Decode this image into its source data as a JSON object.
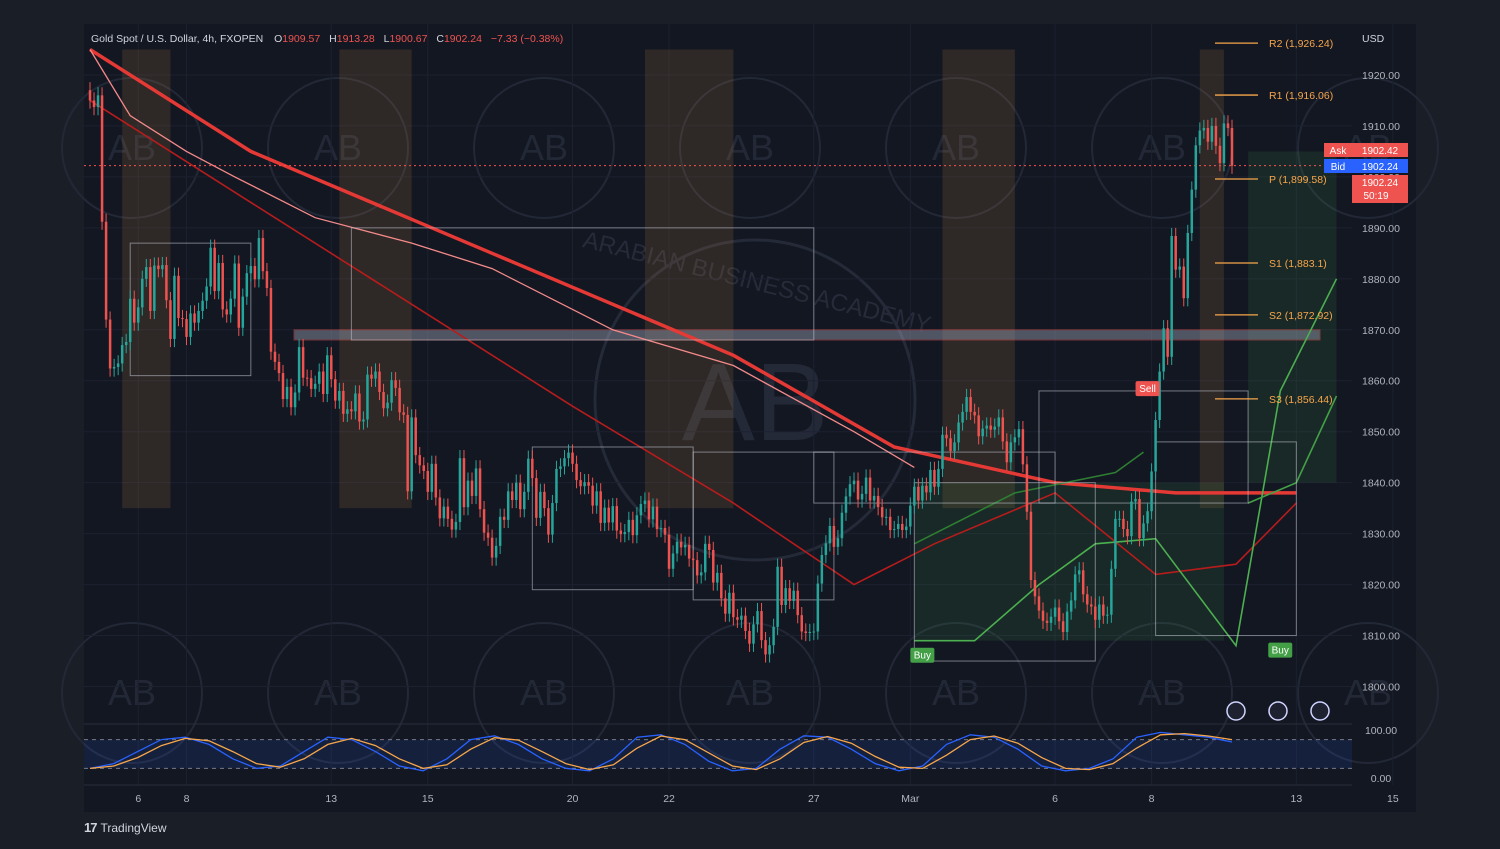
{
  "header": {
    "symbol": "Gold Spot / U.S. Dollar, 4h, FXOPEN",
    "o_label": "O",
    "o_value": "1909.57",
    "h_label": "H",
    "h_value": "1913.28",
    "l_label": "L",
    "l_value": "1900.67",
    "c_label": "C",
    "c_value": "1902.24",
    "change": "−7.33 (−0.38%)"
  },
  "currency": "USD",
  "quote": {
    "ask_label": "Ask",
    "ask_value": "1902.42",
    "bid_label": "Bid",
    "bid_value": "1902.24",
    "last_value": "1902.24",
    "countdown": "50:19"
  },
  "branding": {
    "logo": "17",
    "name": "TradingView"
  },
  "watermark": {
    "text": "ARABIAN BUSINESS ACADEMY",
    "mono": "AB"
  },
  "colors": {
    "background": "#131722",
    "frame": "#1a1e27",
    "up": "#26a69a",
    "down": "#ef5350",
    "pivot": "#f7a64a",
    "ema": "#e53935",
    "supertrend_up": "#4caf50",
    "supertrend_down": "#ef5350"
  },
  "chart_data": {
    "type": "candlestick",
    "price_axis": {
      "min": 1795,
      "max": 1930,
      "ticks": [
        1800,
        1810,
        1820,
        1830,
        1840,
        1850,
        1860,
        1870,
        1880,
        1890,
        1900,
        1910,
        1920
      ],
      "labels": [
        "1800.00",
        "1810.00",
        "1820.00",
        "1830.00",
        "1840.00",
        "1850.00",
        "1860.00",
        "1870.00",
        "1880.00",
        "1890.00",
        "1900.00",
        "1910.00",
        "1920.00"
      ]
    },
    "time_axis": {
      "labels": [
        "6",
        "8",
        "13",
        "15",
        "20",
        "22",
        "27",
        "Mar",
        "6",
        "8",
        "13",
        "15"
      ],
      "index": [
        12,
        24,
        60,
        84,
        120,
        144,
        180,
        204,
        240,
        264,
        300,
        324
      ]
    },
    "closes": [
      1915.0,
      1913.7,
      1916.0,
      1891.2,
      1872.0,
      1862.4,
      1862.7,
      1863.4,
      1867.0,
      1867.6,
      1876.1,
      1871.4,
      1874.4,
      1880.0,
      1882.3,
      1873.7,
      1882.6,
      1881.9,
      1882.7,
      1875.8,
      1868.2,
      1880.6,
      1872.3,
      1872.1,
      1868.6,
      1873.2,
      1871.4,
      1873.7,
      1875.7,
      1878.5,
      1886.1,
      1877.6,
      1883.1,
      1874.0,
      1873.0,
      1876.1,
      1883.0,
      1870.4,
      1876.5,
      1881.1,
      1882.5,
      1879.9,
      1888.0,
      1881.5,
      1878.2,
      1865.7,
      1863.7,
      1861.5,
      1856.4,
      1858.8,
      1854.8,
      1857.7,
      1866.6,
      1860.6,
      1860.5,
      1858.4,
      1859.4,
      1861.8,
      1857.4,
      1865.0,
      1860.3,
      1856.1,
      1858.0,
      1853.5,
      1854.4,
      1854.0,
      1857.5,
      1852.0,
      1852.4,
      1861.2,
      1860.4,
      1861.8,
      1857.8,
      1854.6,
      1855.7,
      1860.1,
      1858.6,
      1853.8,
      1853.3,
      1838.3,
      1852.8,
      1845.4,
      1843.4,
      1842.3,
      1838.2,
      1843.7,
      1837.1,
      1833.0,
      1835.3,
      1832.9,
      1830.8,
      1832.3,
      1844.8,
      1835.2,
      1840.4,
      1837.4,
      1842.8,
      1834.8,
      1830.2,
      1829.2,
      1825.3,
      1827.6,
      1833.3,
      1832.7,
      1838.3,
      1836.6,
      1840.0,
      1834.8,
      1838.2,
      1844.7,
      1840.9,
      1833.1,
      1838.2,
      1835.0,
      1829.8,
      1836.0,
      1842.7,
      1843.2,
      1844.8,
      1845.9,
      1843.7,
      1840.5,
      1839.3,
      1840.1,
      1839.4,
      1835.5,
      1838.3,
      1832.1,
      1835.1,
      1832.2,
      1835.4,
      1830.6,
      1829.9,
      1830.3,
      1832.7,
      1829.7,
      1833.6,
      1835.8,
      1836.5,
      1832.8,
      1835.3,
      1830.9,
      1831.1,
      1829.8,
      1823.1,
      1826.1,
      1828.4,
      1827.3,
      1827.8,
      1825.1,
      1824.8,
      1821.8,
      1822.4,
      1828.0,
      1826.8,
      1820.4,
      1822.3,
      1817.3,
      1814.3,
      1818.4,
      1813.6,
      1813.1,
      1813.9,
      1810.9,
      1808.4,
      1812.2,
      1814.8,
      1809.1,
      1806.3,
      1808.1,
      1811.7,
      1823.5,
      1816.0,
      1819.3,
      1816.8,
      1818.8,
      1814.0,
      1810.8,
      1810.5,
      1810.7,
      1810.8,
      1820.2,
      1825.8,
      1828.1,
      1831.5,
      1827.4,
      1829.1,
      1834.1,
      1837.3,
      1839.7,
      1840.4,
      1836.7,
      1837.8,
      1841.0,
      1836.5,
      1837.4,
      1835.2,
      1833.2,
      1833.3,
      1830.7,
      1830.9,
      1831.9,
      1830.7,
      1831.4,
      1835.5,
      1839.2,
      1836.5,
      1839.4,
      1838.1,
      1842.5,
      1839.2,
      1842.7,
      1849.4,
      1848.7,
      1846.2,
      1847.9,
      1851.8,
      1853.9,
      1856.8,
      1853.9,
      1853.2,
      1849.1,
      1850.6,
      1851.2,
      1850.4,
      1851.0,
      1852.8,
      1848.1,
      1844.0,
      1847.9,
      1848.9,
      1850.5,
      1843.6,
      1834.3,
      1820.9,
      1817.7,
      1814.9,
      1812.9,
      1812.5,
      1813.7,
      1815.5,
      1812.8,
      1810.7,
      1814.7,
      1816.9,
      1822.0,
      1822.8,
      1818.1,
      1816.1,
      1815.7,
      1813.1,
      1816.1,
      1813.9,
      1814.1,
      1823.1,
      1832.9,
      1832.9,
      1830.9,
      1829.5,
      1836.3,
      1836.8,
      1829.1,
      1832.0,
      1834.4,
      1842.2,
      1852.3,
      1861.8,
      1870.3,
      1864.7,
      1888.4,
      1881.8,
      1882.4,
      1876.2,
      1889.0,
      1897.5,
      1906.2,
      1909.1,
      1909.6,
      1906.9,
      1910.0,
      1906.1,
      1902.7,
      1910.5,
      1909.6,
      1902.2
    ],
    "opens_note": "each candle opens at prior close",
    "ema_long": [
      [
        0,
        1925
      ],
      [
        40,
        1905
      ],
      [
        100,
        1885
      ],
      [
        160,
        1865
      ],
      [
        200,
        1847
      ],
      [
        240,
        1840
      ],
      [
        270,
        1838
      ],
      [
        300,
        1838
      ]
    ],
    "ema_fast": [
      [
        0,
        1915
      ],
      [
        40,
        1895
      ],
      [
        80,
        1875
      ],
      [
        120,
        1855
      ],
      [
        160,
        1836
      ],
      [
        190,
        1820
      ],
      [
        210,
        1828
      ],
      [
        240,
        1838
      ],
      [
        265,
        1822
      ],
      [
        285,
        1824
      ],
      [
        300,
        1836
      ]
    ],
    "supertrend_down": [
      [
        0,
        1925
      ],
      [
        10,
        1912
      ],
      [
        24,
        1905
      ],
      [
        36,
        1900
      ],
      [
        56,
        1892
      ],
      [
        80,
        1887
      ],
      [
        100,
        1882
      ],
      [
        130,
        1870
      ],
      [
        160,
        1863
      ],
      [
        190,
        1850
      ],
      [
        205,
        1843
      ]
    ],
    "supertrend_up": [
      [
        205,
        1809
      ],
      [
        220,
        1809
      ],
      [
        236,
        1820
      ],
      [
        250,
        1828
      ],
      [
        265,
        1829
      ],
      [
        285,
        1808
      ],
      [
        296,
        1858
      ],
      [
        310,
        1880
      ]
    ],
    "pivots": [
      {
        "label": "R2 (1,926.24)",
        "value": 1926.24
      },
      {
        "label": "R1 (1,916.06)",
        "value": 1916.06
      },
      {
        "label": "P (1,899.58)",
        "value": 1899.58
      },
      {
        "label": "S1 (1,883.1)",
        "value": 1883.1
      },
      {
        "label": "S2 (1,872.92)",
        "value": 1872.92
      },
      {
        "label": "S3 (1,856.44)",
        "value": 1856.44
      }
    ],
    "zone": {
      "from": 1868,
      "to": 1870
    },
    "signals": [
      {
        "label": "Buy",
        "index": 207,
        "price": 1808
      },
      {
        "label": "Sell",
        "index": 263,
        "price": 1856
      },
      {
        "label": "Buy",
        "index": 296,
        "price": 1809
      }
    ],
    "oscillator": {
      "ticks": [
        0,
        100
      ],
      "labels": [
        "0.00",
        "100.00"
      ],
      "band": [
        20,
        80
      ],
      "k": [
        20,
        30,
        55,
        80,
        85,
        70,
        40,
        20,
        25,
        55,
        85,
        80,
        55,
        25,
        15,
        40,
        80,
        88,
        70,
        40,
        20,
        15,
        40,
        85,
        90,
        70,
        35,
        15,
        20,
        60,
        88,
        85,
        60,
        30,
        15,
        25,
        70,
        90,
        85,
        60,
        25,
        15,
        20,
        40,
        85,
        95,
        90,
        85,
        75
      ]
    }
  }
}
